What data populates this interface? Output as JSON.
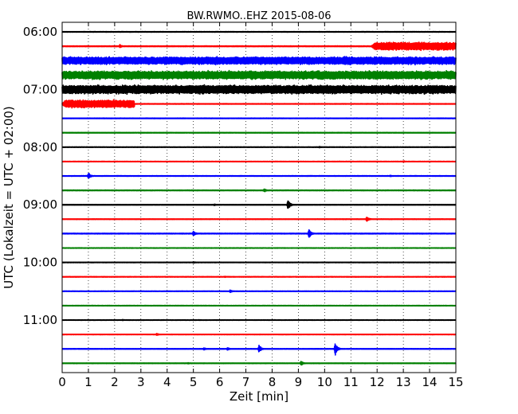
{
  "chart_data": {
    "type": "line",
    "title": "BW.RWMO..EHZ 2015-08-06",
    "xlabel": "Zeit  [min]",
    "ylabel": "UTC (Lokalzeit = UTC + 02:00)",
    "xlim": [
      0,
      15
    ],
    "x_ticks": [
      "0",
      "1",
      "2",
      "3",
      "4",
      "5",
      "6",
      "7",
      "8",
      "9",
      "10",
      "11",
      "12",
      "13",
      "14",
      "15"
    ],
    "y_ticks": [
      "06:00",
      "07:00",
      "08:00",
      "09:00",
      "10:00",
      "11:00"
    ],
    "grid": "vertical dotted",
    "line_colors": [
      "#000000",
      "#ff0000",
      "#0000ff",
      "#008000"
    ],
    "series": [
      {
        "start": "06:00",
        "color": "#000000",
        "noise": 0.06,
        "events": []
      },
      {
        "start": "06:15",
        "color": "#ff0000",
        "noise": 0.08,
        "events": [
          {
            "t": 2.2,
            "amp": 0.35
          },
          {
            "t_start": 11.8,
            "t_end": 15.0,
            "amp": 0.75,
            "type": "block"
          }
        ]
      },
      {
        "start": "06:30",
        "color": "#0000ff",
        "noise": 0.72,
        "events": []
      },
      {
        "start": "06:45",
        "color": "#008000",
        "noise": 0.78,
        "events": []
      },
      {
        "start": "07:00",
        "color": "#000000",
        "noise": 0.82,
        "events": []
      },
      {
        "start": "07:15",
        "color": "#ff0000",
        "noise": 0.06,
        "events": [
          {
            "t_start": 0.0,
            "t_end": 2.75,
            "amp": 0.72,
            "type": "block"
          }
        ]
      },
      {
        "start": "07:30",
        "color": "#0000ff",
        "noise": 0.06,
        "events": []
      },
      {
        "start": "07:45",
        "color": "#008000",
        "noise": 0.06,
        "events": []
      },
      {
        "start": "08:00",
        "color": "#000000",
        "noise": 0.05,
        "events": [
          {
            "t": 9.8,
            "amp": 0.15
          }
        ]
      },
      {
        "start": "08:15",
        "color": "#ff0000",
        "noise": 0.05,
        "events": [
          {
            "t": 13.0,
            "amp": 0.15
          }
        ]
      },
      {
        "start": "08:30",
        "color": "#0000ff",
        "noise": 0.06,
        "events": [
          {
            "t": 1.0,
            "amp": 0.6
          },
          {
            "t": 12.5,
            "amp": 0.15
          }
        ]
      },
      {
        "start": "08:45",
        "color": "#008000",
        "noise": 0.07,
        "events": [
          {
            "t": 7.7,
            "amp": 0.35
          }
        ]
      },
      {
        "start": "09:00",
        "color": "#000000",
        "noise": 0.06,
        "events": [
          {
            "t": 5.8,
            "amp": 0.15
          },
          {
            "t": 8.6,
            "amp": 1.1
          }
        ]
      },
      {
        "start": "09:15",
        "color": "#ff0000",
        "noise": 0.06,
        "events": [
          {
            "t": 11.6,
            "amp": 0.55
          }
        ]
      },
      {
        "start": "09:30",
        "color": "#0000ff",
        "noise": 0.07,
        "events": [
          {
            "t": 5.0,
            "amp": 0.5
          },
          {
            "t": 9.4,
            "amp": 1.0
          }
        ]
      },
      {
        "start": "09:45",
        "color": "#008000",
        "noise": 0.05,
        "events": []
      },
      {
        "start": "10:00",
        "color": "#000000",
        "noise": 0.05,
        "events": [
          {
            "t": 5.0,
            "amp": 0.15
          }
        ]
      },
      {
        "start": "10:15",
        "color": "#ff0000",
        "noise": 0.05,
        "events": [
          {
            "t": 6.2,
            "amp": 0.12
          }
        ]
      },
      {
        "start": "10:30",
        "color": "#0000ff",
        "noise": 0.05,
        "events": [
          {
            "t": 6.4,
            "amp": 0.3
          }
        ]
      },
      {
        "start": "10:45",
        "color": "#008000",
        "noise": 0.05,
        "events": []
      },
      {
        "start": "11:00",
        "color": "#000000",
        "noise": 0.05,
        "events": [
          {
            "t": 2.3,
            "amp": 0.12
          }
        ]
      },
      {
        "start": "11:15",
        "color": "#ff0000",
        "noise": 0.05,
        "events": [
          {
            "t": 3.6,
            "amp": 0.25
          }
        ]
      },
      {
        "start": "11:30",
        "color": "#0000ff",
        "noise": 0.06,
        "events": [
          {
            "t": 5.4,
            "amp": 0.25
          },
          {
            "t": 6.3,
            "amp": 0.3
          },
          {
            "t": 7.5,
            "amp": 0.8
          },
          {
            "t": 10.4,
            "amp": 1.3
          }
        ]
      },
      {
        "start": "11:45",
        "color": "#008000",
        "noise": 0.06,
        "events": [
          {
            "t": 4.8,
            "amp": 0.15
          },
          {
            "t": 9.1,
            "amp": 0.45
          }
        ]
      }
    ]
  }
}
